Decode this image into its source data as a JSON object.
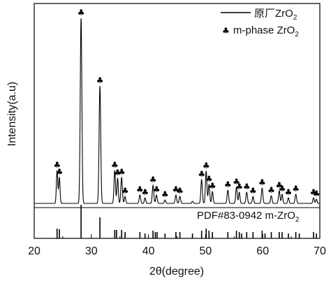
{
  "chart_data": {
    "type": "line",
    "xlabel": "2θ(degree)",
    "ylabel": "Intensity(a.u)",
    "xlim": [
      20,
      70
    ],
    "x_ticks": [
      "20",
      "30",
      "40",
      "50",
      "60",
      "70"
    ],
    "legend": {
      "position": "top-right",
      "entries": [
        {
          "label_prefix": "原厂ZrO",
          "subscript": "2",
          "symbol": "line"
        },
        {
          "label_prefix": "m-phase ZrO",
          "subscript": "2",
          "symbol": "club"
        }
      ]
    },
    "marker_glyph": "♣",
    "reference": {
      "label_prefix": "PDF#83-0942  m-ZrO",
      "subscript": "2"
    },
    "series": [
      {
        "name": "原厂ZrO2",
        "color": "#000000",
        "baseline": 5,
        "peaks": [
          {
            "x": 24.0,
            "h": 47,
            "w": 0.12,
            "marker": true
          },
          {
            "x": 24.4,
            "h": 37,
            "w": 0.12,
            "marker": true
          },
          {
            "x": 28.2,
            "h": 265,
            "w": 0.14,
            "marker": true
          },
          {
            "x": 31.5,
            "h": 168,
            "w": 0.14,
            "marker": true
          },
          {
            "x": 34.1,
            "h": 47,
            "w": 0.13,
            "marker": true
          },
          {
            "x": 34.6,
            "h": 36,
            "w": 0.12,
            "marker": true
          },
          {
            "x": 35.3,
            "h": 37,
            "w": 0.13,
            "marker": true
          },
          {
            "x": 35.9,
            "h": 10,
            "w": 0.12,
            "marker": true
          },
          {
            "x": 38.5,
            "h": 12,
            "w": 0.13,
            "marker": true
          },
          {
            "x": 39.4,
            "h": 8,
            "w": 0.12,
            "marker": true
          },
          {
            "x": 40.8,
            "h": 26,
            "w": 0.13,
            "marker": true
          },
          {
            "x": 41.4,
            "h": 12,
            "w": 0.13,
            "marker": true
          },
          {
            "x": 42.9,
            "h": 5,
            "w": 0.12,
            "marker": true
          },
          {
            "x": 44.8,
            "h": 12,
            "w": 0.13,
            "marker": true
          },
          {
            "x": 45.5,
            "h": 10,
            "w": 0.13,
            "marker": true
          },
          {
            "x": 47.7,
            "h": 3,
            "w": 0.12,
            "marker": false
          },
          {
            "x": 49.3,
            "h": 34,
            "w": 0.13,
            "marker": true
          },
          {
            "x": 50.1,
            "h": 46,
            "w": 0.13,
            "marker": true
          },
          {
            "x": 50.6,
            "h": 27,
            "w": 0.13,
            "marker": true
          },
          {
            "x": 51.2,
            "h": 17,
            "w": 0.12,
            "marker": true
          },
          {
            "x": 53.9,
            "h": 19,
            "w": 0.13,
            "marker": true
          },
          {
            "x": 55.4,
            "h": 23,
            "w": 0.13,
            "marker": true
          },
          {
            "x": 55.9,
            "h": 16,
            "w": 0.12,
            "marker": true
          },
          {
            "x": 57.2,
            "h": 16,
            "w": 0.13,
            "marker": true
          },
          {
            "x": 58.3,
            "h": 10,
            "w": 0.12,
            "marker": true
          },
          {
            "x": 59.9,
            "h": 22,
            "w": 0.13,
            "marker": true
          },
          {
            "x": 61.5,
            "h": 11,
            "w": 0.13,
            "marker": true
          },
          {
            "x": 62.9,
            "h": 18,
            "w": 0.13,
            "marker": true
          },
          {
            "x": 63.4,
            "h": 13,
            "w": 0.12,
            "marker": true
          },
          {
            "x": 64.5,
            "h": 8,
            "w": 0.12,
            "marker": true
          },
          {
            "x": 65.8,
            "h": 13,
            "w": 0.13,
            "marker": true
          },
          {
            "x": 68.9,
            "h": 8,
            "w": 0.12,
            "marker": true
          },
          {
            "x": 69.4,
            "h": 6,
            "w": 0.12,
            "marker": true
          }
        ]
      }
    ],
    "reference_sticks": [
      {
        "x": 24.0,
        "h": 14
      },
      {
        "x": 24.4,
        "h": 13
      },
      {
        "x": 28.2,
        "h": 48
      },
      {
        "x": 31.5,
        "h": 30
      },
      {
        "x": 34.1,
        "h": 12
      },
      {
        "x": 34.4,
        "h": 12
      },
      {
        "x": 35.3,
        "h": 12
      },
      {
        "x": 35.9,
        "h": 9
      },
      {
        "x": 38.5,
        "h": 9
      },
      {
        "x": 39.4,
        "h": 7
      },
      {
        "x": 40.8,
        "h": 11
      },
      {
        "x": 41.2,
        "h": 9
      },
      {
        "x": 41.5,
        "h": 9
      },
      {
        "x": 42.9,
        "h": 7
      },
      {
        "x": 44.8,
        "h": 9
      },
      {
        "x": 45.5,
        "h": 9
      },
      {
        "x": 47.7,
        "h": 7
      },
      {
        "x": 49.3,
        "h": 11
      },
      {
        "x": 50.1,
        "h": 14
      },
      {
        "x": 50.6,
        "h": 11
      },
      {
        "x": 51.2,
        "h": 9
      },
      {
        "x": 53.9,
        "h": 9
      },
      {
        "x": 55.4,
        "h": 11
      },
      {
        "x": 55.9,
        "h": 9
      },
      {
        "x": 56.3,
        "h": 7
      },
      {
        "x": 57.2,
        "h": 9
      },
      {
        "x": 58.3,
        "h": 9
      },
      {
        "x": 59.9,
        "h": 11
      },
      {
        "x": 60.4,
        "h": 7
      },
      {
        "x": 61.5,
        "h": 9
      },
      {
        "x": 62.9,
        "h": 9
      },
      {
        "x": 63.4,
        "h": 9
      },
      {
        "x": 64.5,
        "h": 7
      },
      {
        "x": 65.8,
        "h": 9
      },
      {
        "x": 66.4,
        "h": 7
      },
      {
        "x": 68.9,
        "h": 9
      },
      {
        "x": 69.4,
        "h": 7
      }
    ]
  }
}
